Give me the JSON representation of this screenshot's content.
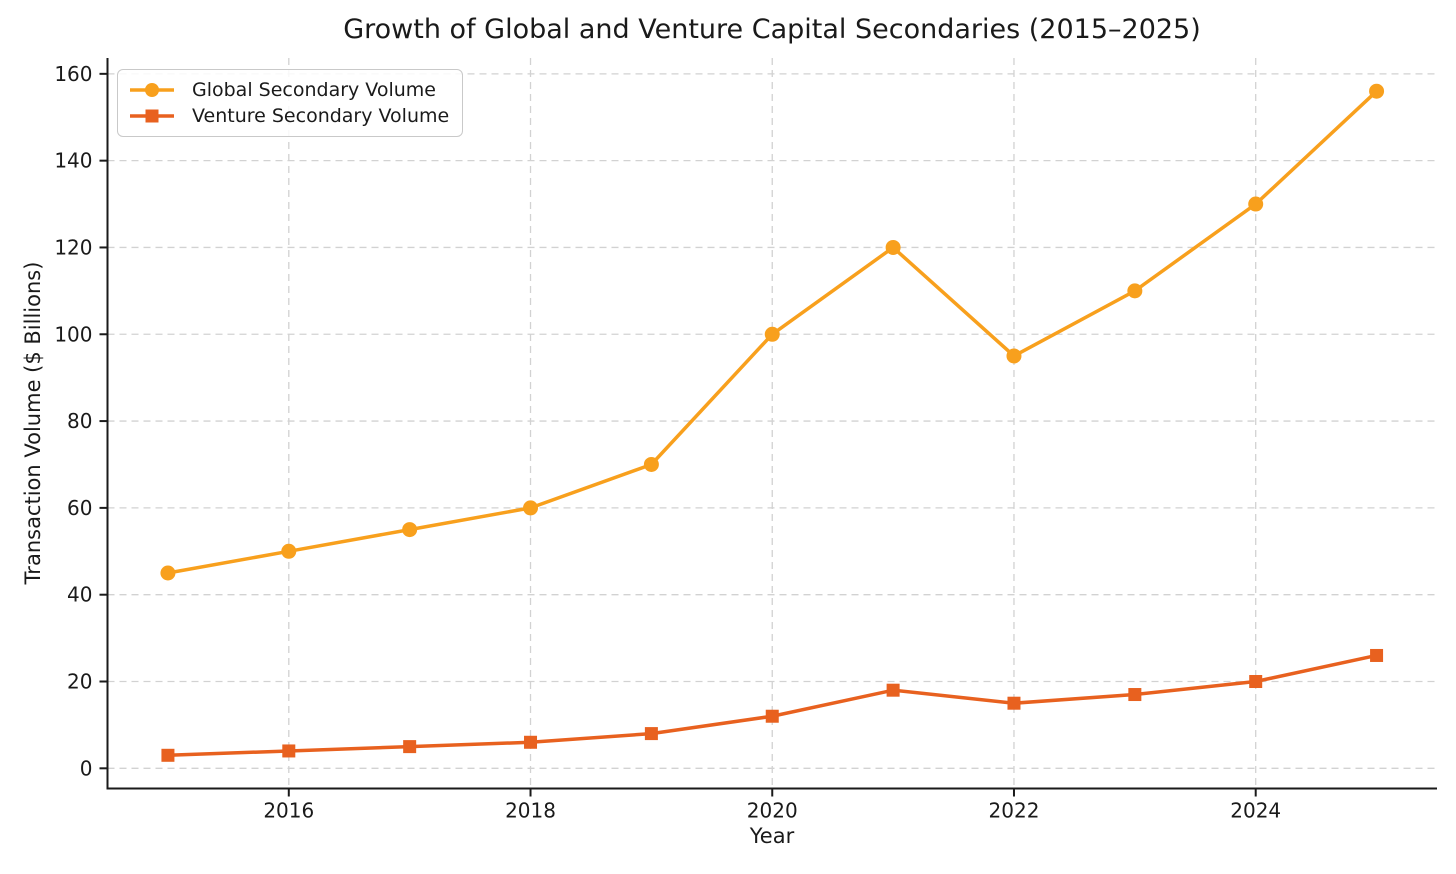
{
  "chart_data": {
    "type": "line",
    "title": "Growth of Global and Venture Capital Secondaries (2015–2025)",
    "xlabel": "Year",
    "ylabel": "Transaction Volume ($ Billions)",
    "x": [
      2015,
      2016,
      2017,
      2018,
      2019,
      2020,
      2021,
      2022,
      2023,
      2024,
      2025
    ],
    "series": [
      {
        "name": "Global Secondary Volume",
        "marker": "circle",
        "color": "#F8A01D",
        "values": [
          45,
          50,
          55,
          60,
          70,
          100,
          120,
          95,
          110,
          130,
          156
        ]
      },
      {
        "name": "Venture Secondary Volume",
        "marker": "square",
        "color": "#E8611F",
        "values": [
          3,
          4,
          5,
          6,
          8,
          12,
          18,
          15,
          17,
          20,
          26
        ]
      }
    ],
    "xlim": [
      2014.5,
      2025.5
    ],
    "ylim": [
      -4.65,
      163.65
    ],
    "xticks": [
      2016,
      2018,
      2020,
      2022,
      2024
    ],
    "yticks": [
      0,
      20,
      40,
      60,
      80,
      100,
      120,
      140,
      160
    ],
    "grid": true,
    "grid_color": "#d2d2d2",
    "legend_position": "upper left",
    "text_color": "#1a1a1a"
  }
}
